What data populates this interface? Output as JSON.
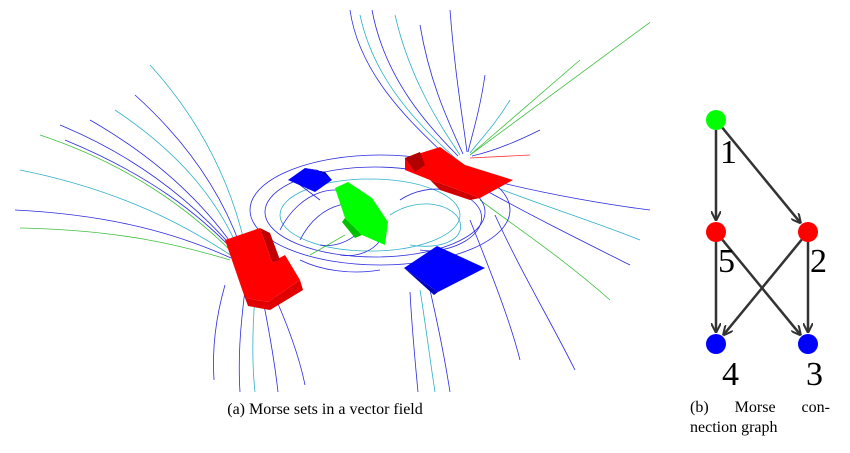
{
  "captions": {
    "a": "(a)  Morse sets in a vector field",
    "b_line1_part1": "(b)",
    "b_line1_part2": "Morse",
    "b_line1_part3": "con-",
    "b_line2": "nection graph"
  },
  "graph": {
    "nodes": [
      {
        "id": "1",
        "label": "1",
        "color": "#00ff00"
      },
      {
        "id": "5",
        "label": "5",
        "color": "#ff0000"
      },
      {
        "id": "2",
        "label": "2",
        "color": "#ff0000"
      },
      {
        "id": "4",
        "label": "4",
        "color": "#0000ff"
      },
      {
        "id": "3",
        "label": "3",
        "color": "#0000ff"
      }
    ],
    "edges": [
      {
        "from": "1",
        "to": "5"
      },
      {
        "from": "1",
        "to": "2"
      },
      {
        "from": "5",
        "to": "4"
      },
      {
        "from": "5",
        "to": "3"
      },
      {
        "from": "2",
        "to": "4"
      },
      {
        "from": "2",
        "to": "3"
      }
    ]
  },
  "colors": {
    "morse_set_red": "#ff0000",
    "morse_set_blue": "#0000ff",
    "morse_set_green": "#00ff00",
    "streamline_blue": "#2a2ae0",
    "streamline_cyan": "#30b0c8",
    "streamline_green": "#40c040"
  }
}
